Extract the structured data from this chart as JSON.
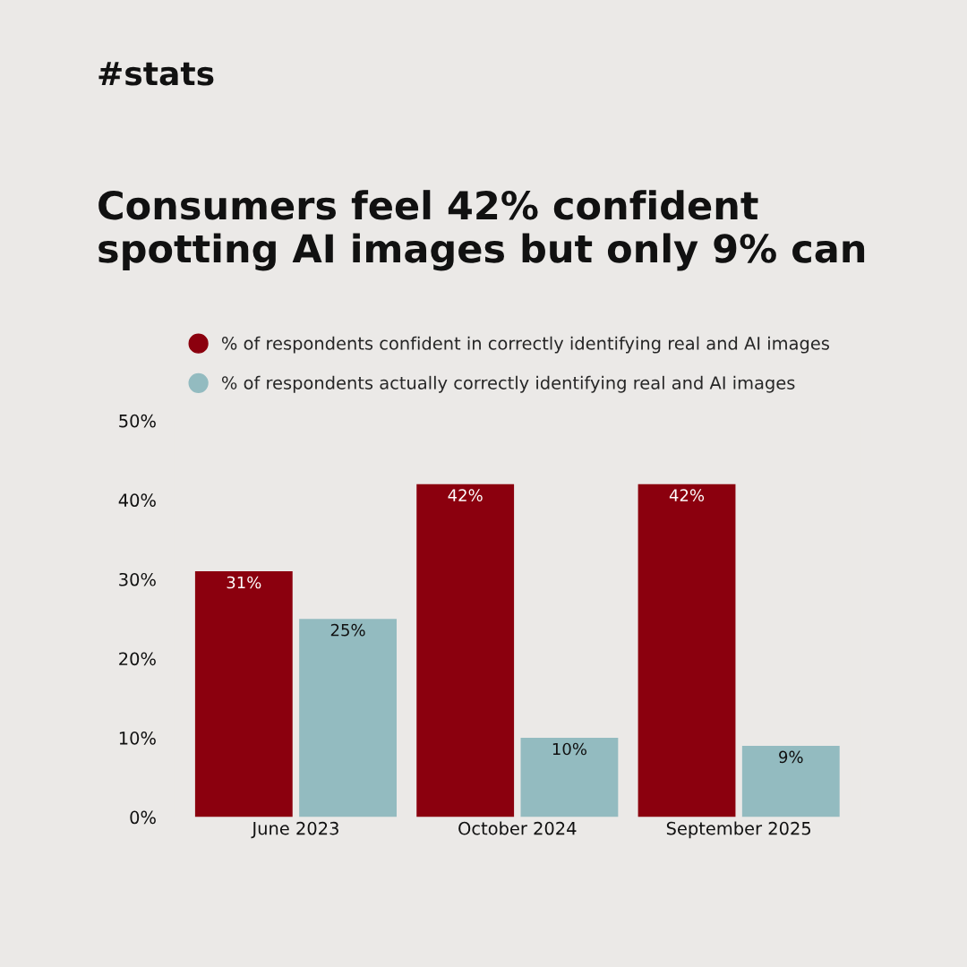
{
  "chart_data": {
    "type": "bar",
    "title": "Consumers feel 42% confident\nspotting AI images but only 9% can",
    "annotations": [
      "#stats"
    ],
    "categories": [
      "June 2023",
      "October 2024",
      "September 2025"
    ],
    "series": [
      {
        "name": "% of respondents confident in correctly identifying real and AI images",
        "color": "#8b000e",
        "values": [
          31,
          42,
          42
        ],
        "value_labels": [
          "31%",
          "42%",
          "42%"
        ]
      },
      {
        "name": "% of respondents actually correctly identifying real and AI images",
        "color": "#93bbc0",
        "values": [
          25,
          10,
          9
        ],
        "value_labels": [
          "25%",
          "10%",
          "9%"
        ]
      }
    ],
    "ylim": [
      0,
      50
    ],
    "yticks": [
      {
        "value": 0,
        "label": "0%"
      },
      {
        "value": 10,
        "label": "10%"
      },
      {
        "value": 20,
        "label": "20%"
      },
      {
        "value": 30,
        "label": "30%"
      },
      {
        "value": 40,
        "label": "40%"
      },
      {
        "value": 50,
        "label": "50%"
      }
    ],
    "legend": "top",
    "grid": false
  }
}
